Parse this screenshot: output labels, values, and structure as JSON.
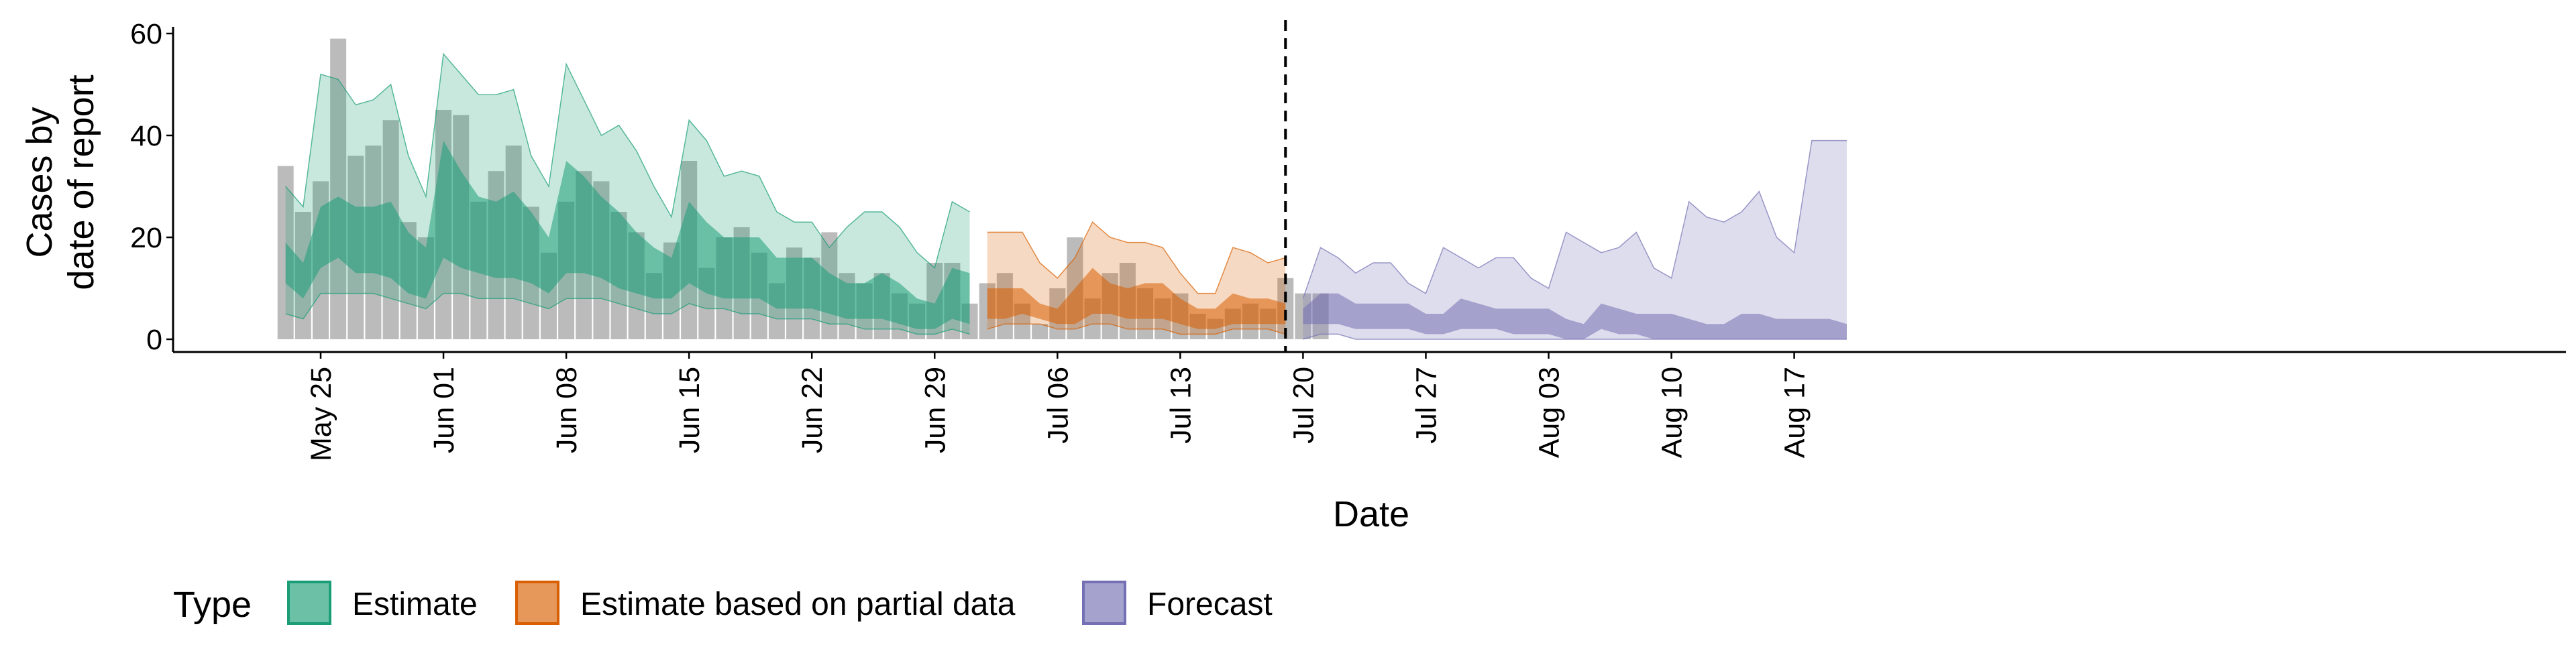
{
  "chart_data": {
    "type": "area",
    "title": "",
    "xlabel": "Date",
    "ylabel": [
      "Cases by",
      "date of report"
    ],
    "ylim": [
      0,
      60
    ],
    "yticks": [
      0,
      20,
      40,
      60
    ],
    "xlim": [
      "2020-05-17",
      "2020-08-22"
    ],
    "xticks": [
      {
        "date": "2020-05-25",
        "label": "May 25"
      },
      {
        "date": "2020-06-01",
        "label": "Jun 01"
      },
      {
        "date": "2020-06-08",
        "label": "Jun 08"
      },
      {
        "date": "2020-06-15",
        "label": "Jun 15"
      },
      {
        "date": "2020-06-22",
        "label": "Jun 22"
      },
      {
        "date": "2020-06-29",
        "label": "Jun 29"
      },
      {
        "date": "2020-07-06",
        "label": "Jul 06"
      },
      {
        "date": "2020-07-13",
        "label": "Jul 13"
      },
      {
        "date": "2020-07-20",
        "label": "Jul 20"
      },
      {
        "date": "2020-07-27",
        "label": "Jul 27"
      },
      {
        "date": "2020-08-03",
        "label": "Aug 03"
      },
      {
        "date": "2020-08-10",
        "label": "Aug 10"
      },
      {
        "date": "2020-08-17",
        "label": "Aug 17"
      }
    ],
    "grid": false,
    "legend_position": "bottom",
    "legend_title": "Type",
    "forecast_divider_date": "2020-07-19",
    "reported_cases": {
      "start_date": "2020-05-23",
      "values": [
        34,
        25,
        31,
        59,
        36,
        38,
        43,
        23,
        20,
        45,
        44,
        27,
        33,
        38,
        26,
        17,
        27,
        33,
        31,
        25,
        21,
        13,
        19,
        35,
        14,
        20,
        22,
        17,
        11,
        18,
        16,
        21,
        13,
        11,
        13,
        9,
        7,
        15,
        15,
        7,
        11,
        13,
        7,
        3,
        10,
        20,
        8,
        13,
        15,
        10,
        8,
        9,
        5,
        4,
        6,
        7,
        6,
        12,
        9,
        9
      ]
    },
    "series": [
      {
        "name": "Estimate",
        "color": "#1b9e77",
        "start_date": "2020-05-23",
        "lower90": [
          5,
          4,
          9,
          9,
          9,
          9,
          8,
          7,
          6,
          9,
          9,
          8,
          8,
          8,
          7,
          6,
          8,
          8,
          8,
          7,
          6,
          5,
          5,
          7,
          6,
          6,
          5,
          5,
          4,
          4,
          4,
          3,
          3,
          2,
          2,
          2,
          1,
          1,
          2,
          1
        ],
        "lower50": [
          11,
          8,
          14,
          16,
          13,
          13,
          12,
          9,
          8,
          16,
          14,
          13,
          12,
          12,
          11,
          9,
          13,
          13,
          12,
          10,
          9,
          8,
          8,
          11,
          9,
          8,
          8,
          8,
          6,
          6,
          6,
          5,
          4,
          4,
          4,
          3,
          2,
          2,
          4,
          3
        ],
        "upper50": [
          19,
          15,
          26,
          28,
          26,
          26,
          27,
          21,
          18,
          39,
          33,
          28,
          27,
          29,
          25,
          20,
          35,
          32,
          28,
          25,
          21,
          18,
          16,
          27,
          23,
          20,
          20,
          20,
          16,
          16,
          16,
          13,
          11,
          11,
          13,
          11,
          8,
          7,
          14,
          13
        ],
        "upper90": [
          30,
          26,
          52,
          51,
          46,
          47,
          50,
          36,
          28,
          56,
          52,
          48,
          48,
          49,
          36,
          30,
          54,
          47,
          40,
          42,
          37,
          30,
          24,
          43,
          39,
          32,
          33,
          32,
          25,
          23,
          23,
          18,
          22,
          25,
          25,
          22,
          17,
          14,
          27,
          25
        ]
      },
      {
        "name": "Estimate based on partial data",
        "color": "#d95f02",
        "start_date": "2020-07-02",
        "lower90": [
          2,
          3,
          3,
          3,
          2,
          2,
          3,
          3,
          2,
          2,
          2,
          1,
          1,
          1,
          2,
          2,
          2,
          1
        ],
        "lower50": [
          4,
          4,
          5,
          4,
          3,
          3,
          5,
          5,
          4,
          4,
          4,
          3,
          2,
          2,
          3,
          3,
          3,
          3
        ],
        "upper50": [
          10,
          10,
          10,
          7,
          6,
          10,
          14,
          11,
          10,
          11,
          11,
          8,
          6,
          6,
          9,
          8,
          8,
          7
        ],
        "upper90": [
          21,
          21,
          21,
          15,
          12,
          16,
          23,
          20,
          19,
          19,
          18,
          13,
          9,
          9,
          18,
          17,
          15,
          16
        ]
      },
      {
        "name": "Forecast",
        "color": "#7570b3",
        "start_date": "2020-07-20",
        "lower90": [
          0,
          1,
          1,
          0,
          0,
          0,
          0,
          0,
          0,
          0,
          0,
          0,
          0,
          0,
          0,
          0,
          0,
          0,
          0,
          0,
          0,
          0,
          0,
          0,
          0,
          0,
          0,
          0,
          0,
          0,
          0,
          0
        ],
        "lower50": [
          3,
          3,
          3,
          2,
          2,
          2,
          2,
          1,
          1,
          2,
          2,
          2,
          1,
          1,
          1,
          0,
          0,
          2,
          1,
          1,
          0,
          0,
          0,
          0,
          0,
          0,
          0,
          0,
          0,
          0,
          0,
          0
        ],
        "upper50": [
          6,
          9,
          9,
          7,
          7,
          7,
          7,
          5,
          5,
          8,
          7,
          6,
          6,
          6,
          6,
          4,
          3,
          7,
          6,
          5,
          5,
          5,
          4,
          3,
          3,
          5,
          5,
          4,
          4,
          4,
          4,
          3
        ],
        "upper90": [
          8,
          18,
          16,
          13,
          15,
          15,
          11,
          9,
          18,
          16,
          14,
          16,
          16,
          12,
          10,
          21,
          19,
          17,
          18,
          21,
          14,
          12,
          27,
          24,
          23,
          25,
          29,
          20,
          17,
          39,
          39,
          39
        ]
      }
    ]
  }
}
